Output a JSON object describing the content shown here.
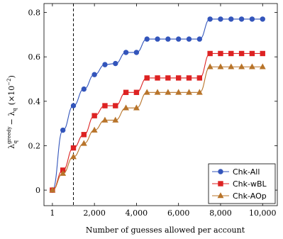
{
  "chart_data": {
    "type": "line",
    "xlabel": "Number of guesses allowed per account",
    "ylabel_main": "λ",
    "ylabel_sup": "greedy",
    "ylabel_sub": "q",
    "ylabel_rest": " − λ",
    "ylabel_sub2": "q",
    "ylabel_factor": "(×10",
    "ylabel_exp": "−2",
    "ylabel_close": ")",
    "xlim": [
      -400,
      10700
    ],
    "ylim": [
      -0.07,
      0.84
    ],
    "xticks": [
      1,
      2000,
      4000,
      6000,
      8000,
      10000
    ],
    "xtick_labels": [
      "1",
      "2,000",
      "4,000",
      "6,000",
      "8,000",
      "10,000"
    ],
    "yticks": [
      0,
      0.2,
      0.4,
      0.6,
      0.8
    ],
    "ytick_labels": [
      "0",
      "0.2",
      "0.4",
      "0.6",
      "0.8"
    ],
    "reference_line_x": 1000,
    "legend_position": "bottom-right",
    "series": [
      {
        "name": "Chk-All",
        "color": "#3355bb",
        "marker": "circle",
        "x": [
          1,
          500,
          1000,
          1500,
          2000,
          2500,
          3000,
          3500,
          4000,
          4500,
          5000,
          5500,
          6000,
          6500,
          7000,
          7500,
          8000,
          8500,
          9000,
          9500,
          10000
        ],
        "y": [
          0,
          0.27,
          0.38,
          0.455,
          0.52,
          0.565,
          0.57,
          0.62,
          0.62,
          0.68,
          0.68,
          0.68,
          0.68,
          0.68,
          0.68,
          0.77,
          0.77,
          0.77,
          0.77,
          0.77,
          0.77
        ]
      },
      {
        "name": "Chk-wBL",
        "color": "#dd2222",
        "marker": "square",
        "x": [
          1,
          500,
          1000,
          1500,
          2000,
          2500,
          3000,
          3500,
          4000,
          4500,
          5000,
          5500,
          6000,
          6500,
          7000,
          7500,
          8000,
          8500,
          9000,
          9500,
          10000
        ],
        "y": [
          0,
          0.09,
          0.19,
          0.25,
          0.335,
          0.38,
          0.38,
          0.44,
          0.44,
          0.505,
          0.505,
          0.505,
          0.505,
          0.505,
          0.505,
          0.615,
          0.615,
          0.615,
          0.615,
          0.615,
          0.615
        ]
      },
      {
        "name": "Chk-AOp",
        "color": "#b8742a",
        "marker": "triangle",
        "x": [
          1,
          500,
          1000,
          1500,
          2000,
          2500,
          3000,
          3500,
          4000,
          4500,
          5000,
          5500,
          6000,
          6500,
          7000,
          7500,
          8000,
          8500,
          9000,
          9500,
          10000
        ],
        "y": [
          0,
          0.075,
          0.15,
          0.21,
          0.27,
          0.315,
          0.315,
          0.37,
          0.37,
          0.44,
          0.44,
          0.44,
          0.44,
          0.44,
          0.44,
          0.555,
          0.555,
          0.555,
          0.555,
          0.555,
          0.555
        ]
      }
    ]
  }
}
